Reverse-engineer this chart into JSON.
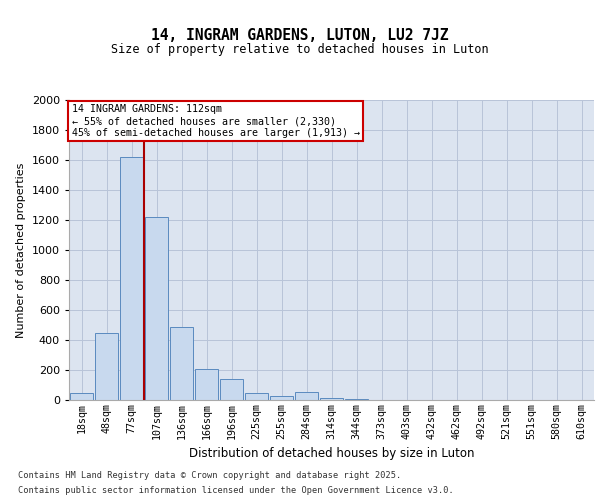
{
  "title": "14, INGRAM GARDENS, LUTON, LU2 7JZ",
  "subtitle": "Size of property relative to detached houses in Luton",
  "xlabel": "Distribution of detached houses by size in Luton",
  "ylabel": "Number of detached properties",
  "categories": [
    "18sqm",
    "48sqm",
    "77sqm",
    "107sqm",
    "136sqm",
    "166sqm",
    "196sqm",
    "225sqm",
    "255sqm",
    "284sqm",
    "314sqm",
    "344sqm",
    "373sqm",
    "403sqm",
    "432sqm",
    "462sqm",
    "492sqm",
    "521sqm",
    "551sqm",
    "580sqm",
    "610sqm"
  ],
  "values": [
    50,
    450,
    1620,
    1220,
    490,
    210,
    140,
    50,
    30,
    55,
    15,
    8,
    3,
    1,
    0,
    0,
    0,
    0,
    0,
    0,
    0
  ],
  "bar_color": "#c8d9ee",
  "bar_edge_color": "#5a8abf",
  "grid_color": "#b8c4d8",
  "bg_color": "#dce4f0",
  "vline_x_idx": 2.5,
  "vline_color": "#aa0000",
  "annotation_box_text": "14 INGRAM GARDENS: 112sqm\n← 55% of detached houses are smaller (2,330)\n45% of semi-detached houses are larger (1,913) →",
  "annotation_box_color": "#cc0000",
  "footer_line1": "Contains HM Land Registry data © Crown copyright and database right 2025.",
  "footer_line2": "Contains public sector information licensed under the Open Government Licence v3.0.",
  "ylim": [
    0,
    2000
  ],
  "yticks": [
    0,
    200,
    400,
    600,
    800,
    1000,
    1200,
    1400,
    1600,
    1800,
    2000
  ],
  "figsize": [
    6.0,
    5.0
  ],
  "dpi": 100
}
